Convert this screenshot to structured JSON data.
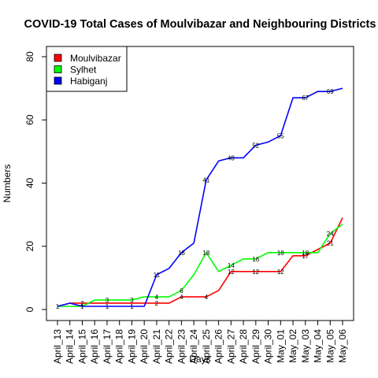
{
  "chart_data": {
    "type": "line",
    "title": "COVID-19 Total Cases of Moulvibazar and Neighbouring Districts",
    "xlabel": "Days",
    "ylabel": "Numbers",
    "ylim": [
      0,
      80
    ],
    "yticks": [
      0,
      20,
      40,
      60,
      80
    ],
    "grid": false,
    "legend_position": "top-left",
    "categories": [
      "April_13",
      "April_14",
      "April_15",
      "April_16",
      "April_17",
      "April_18",
      "April_19",
      "April_20",
      "April_21",
      "April_22",
      "April_23",
      "April_24",
      "April_25",
      "April_26",
      "April_27",
      "April_28",
      "April_29",
      "April_30",
      "May_01",
      "May_02",
      "May_03",
      "May_04",
      "May_05",
      "May_06"
    ],
    "series": [
      {
        "name": "Moulvibazar",
        "color": "#ff0000",
        "values": [
          1,
          2,
          2,
          2,
          2,
          2,
          2,
          2,
          2,
          2,
          4,
          4,
          4,
          6,
          12,
          12,
          12,
          12,
          12,
          17,
          17,
          19,
          21,
          29
        ],
        "labels": [
          {
            "i": 2,
            "text": "2"
          },
          {
            "i": 8,
            "text": "2"
          },
          {
            "i": 10,
            "text": "4"
          },
          {
            "i": 12,
            "text": "4"
          },
          {
            "i": 14,
            "text": "12"
          },
          {
            "i": 16,
            "text": "12"
          },
          {
            "i": 18,
            "text": "12"
          },
          {
            "i": 20,
            "text": "17"
          },
          {
            "i": 22,
            "text": "21"
          }
        ]
      },
      {
        "name": "Sylhet",
        "color": "#00ff00",
        "values": [
          1,
          1,
          1,
          3,
          3,
          3,
          3,
          4,
          4,
          4,
          6,
          11,
          18,
          12,
          14,
          16,
          16,
          18,
          18,
          18,
          18,
          18,
          24,
          27
        ],
        "labels": [
          {
            "i": 4,
            "text": "3"
          },
          {
            "i": 6,
            "text": "3"
          },
          {
            "i": 8,
            "text": "4"
          },
          {
            "i": 10,
            "text": "6"
          },
          {
            "i": 12,
            "text": "18"
          },
          {
            "i": 14,
            "text": "14"
          },
          {
            "i": 16,
            "text": "16"
          },
          {
            "i": 18,
            "text": "18"
          },
          {
            "i": 20,
            "text": "18"
          },
          {
            "i": 22,
            "text": "24"
          }
        ]
      },
      {
        "name": "Habiganj",
        "color": "#0000ff",
        "values": [
          1,
          2,
          1,
          1,
          1,
          1,
          1,
          1,
          11,
          13,
          18,
          21,
          41,
          47,
          48,
          48,
          52,
          53,
          55,
          67,
          67,
          69,
          69,
          70
        ],
        "labels": [
          {
            "i": 0,
            "text": "1"
          },
          {
            "i": 2,
            "text": "1"
          },
          {
            "i": 4,
            "text": "1"
          },
          {
            "i": 6,
            "text": "1"
          },
          {
            "i": 8,
            "text": "11"
          },
          {
            "i": 10,
            "text": "18"
          },
          {
            "i": 12,
            "text": "41"
          },
          {
            "i": 14,
            "text": "48"
          },
          {
            "i": 16,
            "text": "52"
          },
          {
            "i": 18,
            "text": "55"
          },
          {
            "i": 20,
            "text": "67"
          },
          {
            "i": 22,
            "text": "69"
          }
        ]
      }
    ]
  }
}
